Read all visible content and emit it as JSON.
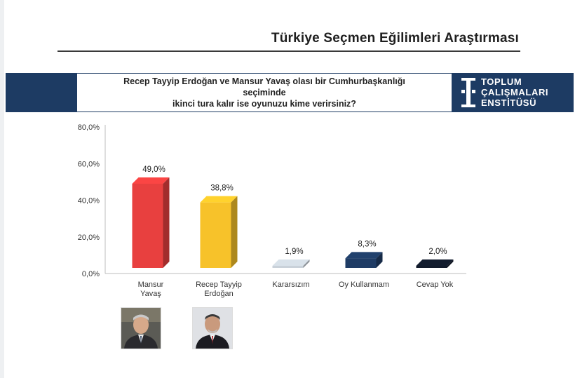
{
  "page_title": "Türkiye Seçmen Eğilimleri Araştırması",
  "question": {
    "line1": "Recep Tayyip Erdoğan ve Mansur Yavaş olası bir Cumhurbaşkanlığı",
    "line2": "seçiminde",
    "line3": "ikinci tura kalır ise oyunuzu kime verirsiniz?"
  },
  "logo": {
    "line1": "TOPLUM",
    "line2": "ÇALIŞMALARI",
    "line3": "ENSTİTÜSÜ"
  },
  "photos": {
    "yavas_icon": "portrait-photo",
    "erdogan_icon": "portrait-photo"
  },
  "chart_data": {
    "type": "bar",
    "categories": [
      [
        "Mansur",
        "Yavaş"
      ],
      [
        "Recep Tayyip",
        "Erdoğan"
      ],
      [
        "Kararsızım"
      ],
      [
        "Oy Kullanmam"
      ],
      [
        "Cevap Yok"
      ]
    ],
    "values": [
      49.0,
      38.8,
      1.9,
      8.3,
      2.0
    ],
    "value_labels": [
      "49,0%",
      "38,8%",
      "1,9%",
      "8,3%",
      "2,0%"
    ],
    "colors": [
      "#e8403f",
      "#f7c22a",
      "#c9d1d9",
      "#1f3c65",
      "#111a2b"
    ],
    "yticks": [
      "0,0%",
      "20,0%",
      "40,0%",
      "60,0%",
      "80,0%"
    ],
    "ylim": [
      0,
      80
    ],
    "grid": false
  }
}
